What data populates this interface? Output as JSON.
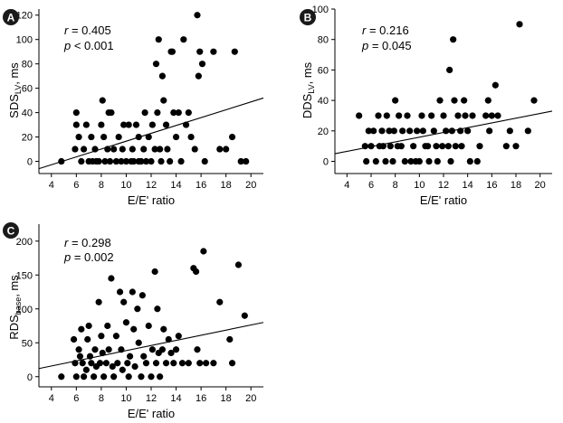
{
  "chart_data": [
    {
      "type": "scatter",
      "panel_label": "A",
      "stat_r_label": "r",
      "stat_r_value": " = 0.405",
      "stat_p_label": "p",
      "stat_p_value": " < 0.001",
      "xlabel": "E/E' ratio",
      "ylabel_main": "SDS",
      "ylabel_sub": "LV",
      "ylabel_unit": ", ms",
      "xlim": [
        3,
        21
      ],
      "ylim": [
        -10,
        125
      ],
      "xticks": [
        4,
        6,
        8,
        10,
        12,
        14,
        16,
        18,
        20
      ],
      "yticks": [
        0,
        20,
        40,
        60,
        80,
        100,
        120
      ],
      "fit": {
        "x1": 3,
        "y1": -6,
        "x2": 21,
        "y2": 52
      },
      "points": [
        [
          4.8,
          0
        ],
        [
          5.9,
          10
        ],
        [
          6.0,
          30
        ],
        [
          6.0,
          40
        ],
        [
          6.2,
          20
        ],
        [
          6.4,
          0
        ],
        [
          6.6,
          10
        ],
        [
          6.8,
          30
        ],
        [
          7.0,
          0
        ],
        [
          7.2,
          20
        ],
        [
          7.3,
          0
        ],
        [
          7.5,
          10
        ],
        [
          7.6,
          0
        ],
        [
          7.8,
          0
        ],
        [
          8.0,
          30
        ],
        [
          8.1,
          50
        ],
        [
          8.2,
          20
        ],
        [
          8.3,
          0
        ],
        [
          8.5,
          10
        ],
        [
          8.6,
          40
        ],
        [
          8.7,
          0
        ],
        [
          8.8,
          40
        ],
        [
          9.0,
          10
        ],
        [
          9.2,
          0
        ],
        [
          9.4,
          20
        ],
        [
          9.6,
          0
        ],
        [
          9.7,
          10
        ],
        [
          9.8,
          30
        ],
        [
          10.0,
          0
        ],
        [
          10.2,
          30
        ],
        [
          10.4,
          0
        ],
        [
          10.5,
          10
        ],
        [
          10.6,
          0
        ],
        [
          10.8,
          30
        ],
        [
          11.0,
          0
        ],
        [
          11.0,
          20
        ],
        [
          11.2,
          0
        ],
        [
          11.4,
          10
        ],
        [
          11.5,
          40
        ],
        [
          11.6,
          0
        ],
        [
          11.8,
          20
        ],
        [
          12.0,
          0
        ],
        [
          12.1,
          30
        ],
        [
          12.3,
          10
        ],
        [
          12.4,
          80
        ],
        [
          12.5,
          40
        ],
        [
          12.6,
          100
        ],
        [
          12.7,
          10
        ],
        [
          12.8,
          0
        ],
        [
          12.9,
          70
        ],
        [
          13.0,
          50
        ],
        [
          13.2,
          30
        ],
        [
          13.3,
          10
        ],
        [
          13.5,
          0
        ],
        [
          13.6,
          90
        ],
        [
          13.7,
          90
        ],
        [
          13.8,
          40
        ],
        [
          14.0,
          20
        ],
        [
          14.2,
          40
        ],
        [
          14.4,
          0
        ],
        [
          14.6,
          100
        ],
        [
          14.8,
          30
        ],
        [
          15.0,
          40
        ],
        [
          15.2,
          20
        ],
        [
          15.5,
          10
        ],
        [
          15.7,
          120
        ],
        [
          15.8,
          70
        ],
        [
          15.9,
          90
        ],
        [
          16.1,
          80
        ],
        [
          16.3,
          0
        ],
        [
          17.0,
          90
        ],
        [
          17.5,
          10
        ],
        [
          18.0,
          10
        ],
        [
          18.5,
          20
        ],
        [
          18.7,
          90
        ],
        [
          19.2,
          0
        ],
        [
          19.6,
          0
        ]
      ]
    },
    {
      "type": "scatter",
      "panel_label": "B",
      "stat_r_label": "r",
      "stat_r_value": " = 0.216",
      "stat_p_label": "p",
      "stat_p_value": " = 0.045",
      "xlabel": "E/E' ratio",
      "ylabel_main": "DDS",
      "ylabel_sub": "LV",
      "ylabel_unit": ", ms",
      "xlim": [
        3,
        21
      ],
      "ylim": [
        -8,
        100
      ],
      "xticks": [
        4,
        6,
        8,
        10,
        12,
        14,
        16,
        18,
        20
      ],
      "yticks": [
        0,
        20,
        40,
        60,
        80,
        100
      ],
      "fit": {
        "x1": 3,
        "y1": 5,
        "x2": 21,
        "y2": 33
      },
      "points": [
        [
          5.0,
          30
        ],
        [
          5.5,
          10
        ],
        [
          5.6,
          0
        ],
        [
          5.8,
          20
        ],
        [
          6.0,
          10
        ],
        [
          6.2,
          20
        ],
        [
          6.4,
          0
        ],
        [
          6.6,
          30
        ],
        [
          6.7,
          10
        ],
        [
          6.9,
          20
        ],
        [
          7.0,
          10
        ],
        [
          7.2,
          0
        ],
        [
          7.3,
          30
        ],
        [
          7.5,
          20
        ],
        [
          7.6,
          10
        ],
        [
          7.8,
          0
        ],
        [
          7.9,
          20
        ],
        [
          8.0,
          40
        ],
        [
          8.2,
          10
        ],
        [
          8.3,
          30
        ],
        [
          8.5,
          10
        ],
        [
          8.6,
          20
        ],
        [
          8.8,
          0
        ],
        [
          9.0,
          30
        ],
        [
          9.2,
          20
        ],
        [
          9.3,
          0
        ],
        [
          9.5,
          10
        ],
        [
          9.7,
          0
        ],
        [
          9.8,
          20
        ],
        [
          10.0,
          0
        ],
        [
          10.2,
          30
        ],
        [
          10.3,
          20
        ],
        [
          10.5,
          10
        ],
        [
          10.7,
          10
        ],
        [
          10.8,
          0
        ],
        [
          11.0,
          30
        ],
        [
          11.2,
          20
        ],
        [
          11.4,
          10
        ],
        [
          11.5,
          0
        ],
        [
          11.7,
          40
        ],
        [
          11.9,
          10
        ],
        [
          12.0,
          30
        ],
        [
          12.2,
          20
        ],
        [
          12.4,
          10
        ],
        [
          12.5,
          60
        ],
        [
          12.6,
          0
        ],
        [
          12.7,
          20
        ],
        [
          12.8,
          80
        ],
        [
          12.9,
          40
        ],
        [
          13.0,
          10
        ],
        [
          13.2,
          30
        ],
        [
          13.4,
          20
        ],
        [
          13.5,
          10
        ],
        [
          13.7,
          40
        ],
        [
          13.8,
          30
        ],
        [
          14.0,
          20
        ],
        [
          14.2,
          0
        ],
        [
          14.4,
          30
        ],
        [
          14.8,
          0
        ],
        [
          15.0,
          10
        ],
        [
          15.5,
          30
        ],
        [
          15.7,
          40
        ],
        [
          15.8,
          20
        ],
        [
          16.0,
          30
        ],
        [
          16.3,
          50
        ],
        [
          16.5,
          30
        ],
        [
          17.2,
          10
        ],
        [
          17.5,
          20
        ],
        [
          18.0,
          10
        ],
        [
          18.3,
          90
        ],
        [
          19.0,
          20
        ],
        [
          19.5,
          40
        ]
      ]
    },
    {
      "type": "scatter",
      "panel_label": "C",
      "stat_r_label": "r",
      "stat_r_value": " =  0.298",
      "stat_p_label": "p",
      "stat_p_value": " = 0.002",
      "xlabel": "E/E' ratio",
      "ylabel_main": "RDS",
      "ylabel_sub": "base",
      "ylabel_unit": ", ms",
      "xlim": [
        3,
        21
      ],
      "ylim": [
        -15,
        225
      ],
      "xticks": [
        4,
        6,
        8,
        10,
        12,
        14,
        16,
        18,
        20
      ],
      "yticks": [
        0,
        50,
        100,
        150,
        200
      ],
      "fit": {
        "x1": 3,
        "y1": 12,
        "x2": 21,
        "y2": 80
      },
      "points": [
        [
          4.8,
          0
        ],
        [
          5.8,
          55
        ],
        [
          5.9,
          20
        ],
        [
          6.0,
          0
        ],
        [
          6.2,
          40
        ],
        [
          6.3,
          30
        ],
        [
          6.4,
          70
        ],
        [
          6.5,
          20
        ],
        [
          6.6,
          0
        ],
        [
          6.8,
          10
        ],
        [
          6.9,
          55
        ],
        [
          7.0,
          75
        ],
        [
          7.1,
          30
        ],
        [
          7.2,
          20
        ],
        [
          7.4,
          0
        ],
        [
          7.5,
          40
        ],
        [
          7.6,
          15
        ],
        [
          7.8,
          110
        ],
        [
          7.9,
          20
        ],
        [
          8.0,
          60
        ],
        [
          8.1,
          35
        ],
        [
          8.2,
          0
        ],
        [
          8.4,
          20
        ],
        [
          8.5,
          75
        ],
        [
          8.6,
          40
        ],
        [
          8.8,
          145
        ],
        [
          8.9,
          15
        ],
        [
          9.0,
          0
        ],
        [
          9.2,
          60
        ],
        [
          9.3,
          20
        ],
        [
          9.5,
          125
        ],
        [
          9.6,
          40
        ],
        [
          9.7,
          10
        ],
        [
          9.8,
          110
        ],
        [
          10.0,
          80
        ],
        [
          10.1,
          20
        ],
        [
          10.2,
          0
        ],
        [
          10.3,
          30
        ],
        [
          10.5,
          125
        ],
        [
          10.6,
          70
        ],
        [
          10.7,
          15
        ],
        [
          10.9,
          100
        ],
        [
          11.0,
          50
        ],
        [
          11.2,
          0
        ],
        [
          11.3,
          120
        ],
        [
          11.4,
          30
        ],
        [
          11.6,
          20
        ],
        [
          11.8,
          75
        ],
        [
          12.0,
          0
        ],
        [
          12.1,
          40
        ],
        [
          12.3,
          155
        ],
        [
          12.4,
          20
        ],
        [
          12.5,
          100
        ],
        [
          12.6,
          35
        ],
        [
          12.7,
          0
        ],
        [
          12.9,
          40
        ],
        [
          13.0,
          70
        ],
        [
          13.2,
          20
        ],
        [
          13.4,
          55
        ],
        [
          13.6,
          35
        ],
        [
          13.8,
          20
        ],
        [
          14.0,
          40
        ],
        [
          14.2,
          60
        ],
        [
          14.5,
          20
        ],
        [
          15.0,
          20
        ],
        [
          15.4,
          160
        ],
        [
          15.6,
          155
        ],
        [
          15.7,
          40
        ],
        [
          15.9,
          20
        ],
        [
          16.2,
          185
        ],
        [
          16.4,
          20
        ],
        [
          17.0,
          20
        ],
        [
          17.5,
          110
        ],
        [
          18.3,
          55
        ],
        [
          18.5,
          20
        ],
        [
          19.0,
          165
        ],
        [
          19.5,
          90
        ]
      ]
    }
  ]
}
